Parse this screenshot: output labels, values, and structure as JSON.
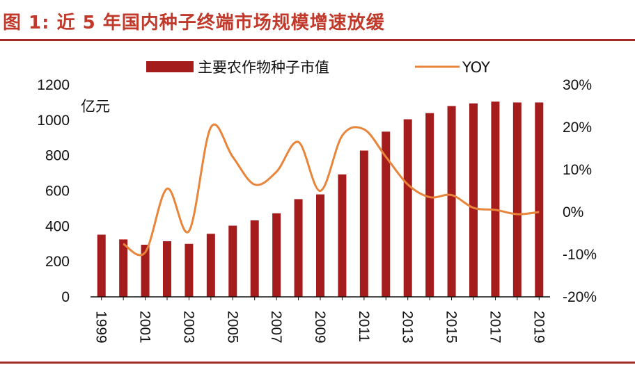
{
  "figure": {
    "title": "图 1:  近 5 年国内种子终端市场规模增速放缓"
  },
  "colors": {
    "title": "#c0392b",
    "rule": "#a32a28",
    "bar": "#a51c1c",
    "line": "#e8853a",
    "axis": "#111111"
  },
  "chart_data": {
    "type": "bar",
    "title": "",
    "y_unit_label": "亿元",
    "categories": [
      "1999",
      "2000",
      "2001",
      "2002",
      "2003",
      "2004",
      "2005",
      "2006",
      "2007",
      "2008",
      "2009",
      "2010",
      "2011",
      "2012",
      "2013",
      "2014",
      "2015",
      "2016",
      "2017",
      "2018",
      "2019"
    ],
    "x_tick_labels": [
      "1999",
      "2001",
      "2003",
      "2005",
      "2007",
      "2009",
      "2011",
      "2013",
      "2015",
      "2017",
      "2019"
    ],
    "series": [
      {
        "name": "主要农作物种子市值",
        "type": "bar",
        "axis": "left",
        "values": [
          352,
          325,
          295,
          315,
          300,
          357,
          403,
          433,
          473,
          553,
          580,
          693,
          828,
          935,
          1005,
          1040,
          1080,
          1095,
          1105,
          1100,
          1100
        ]
      },
      {
        "name": "YOY",
        "type": "line",
        "axis": "right",
        "values": [
          null,
          -7.5,
          -9.5,
          5.5,
          -4.5,
          20,
          13,
          6.5,
          9.5,
          16.5,
          5,
          18,
          19.5,
          13,
          6.5,
          3.5,
          4,
          1,
          0.5,
          -0.5,
          0
        ]
      }
    ],
    "y_left": {
      "min": 0,
      "max": 1200,
      "ticks": [
        "0",
        "200",
        "400",
        "600",
        "800",
        "1000",
        "1200"
      ]
    },
    "y_right": {
      "min": -20,
      "max": 30,
      "ticks": [
        "-20%",
        "-10%",
        "0%",
        "10%",
        "20%",
        "30%"
      ]
    },
    "legend_position": "top-center",
    "grid": false
  }
}
